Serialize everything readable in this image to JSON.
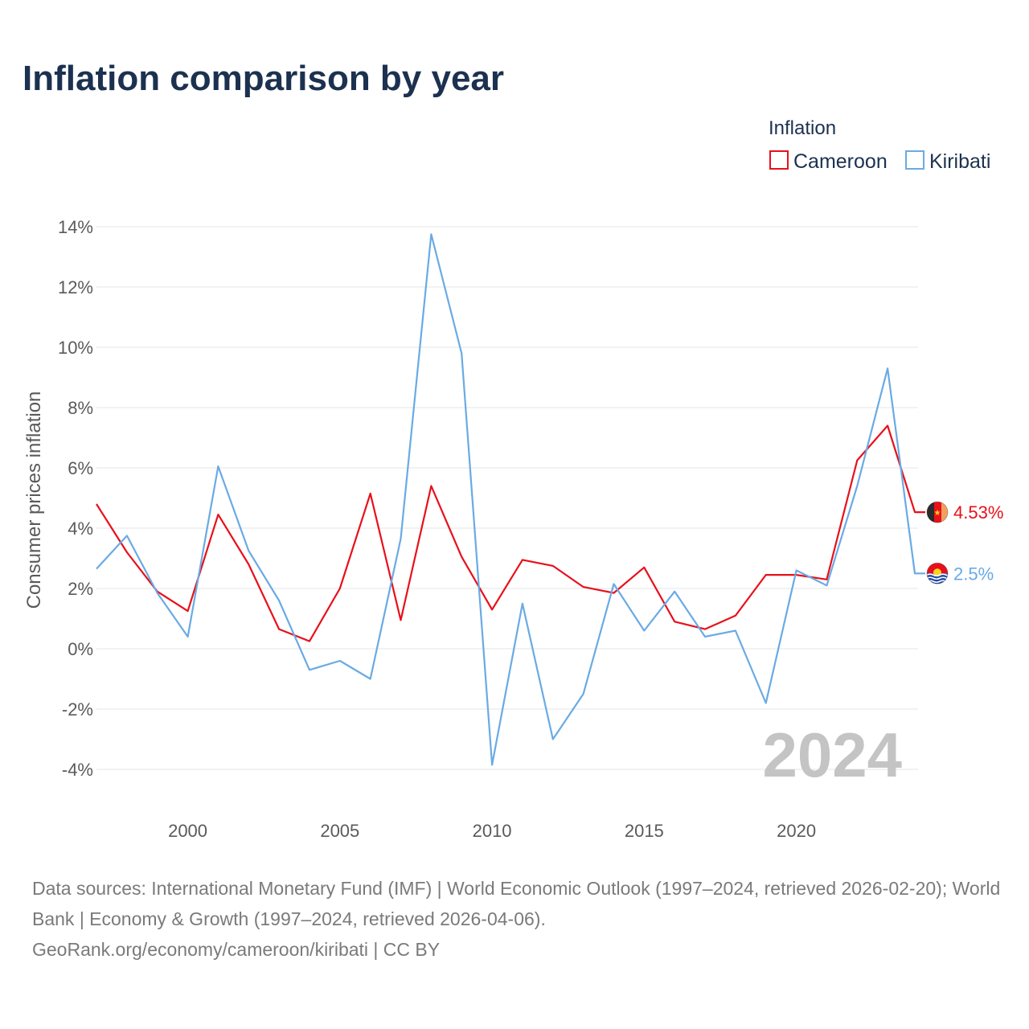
{
  "colors": {
    "title": "#1c3150",
    "cameroon": "#e8101a",
    "kiribati": "#6aaae4",
    "grid": "#e4e4e4",
    "tick": "#5a5a5a",
    "watermark": "#c4c4c4"
  },
  "chart_data": {
    "type": "line",
    "title": "Inflation comparison by year",
    "ylabel": "Consumer prices inflation",
    "xlabel": "",
    "legend_title": "Inflation",
    "legend_position": "top-right",
    "xlim": [
      1997,
      2024
    ],
    "ylim": [
      -4,
      14
    ],
    "x_ticks": [
      2000,
      2005,
      2010,
      2015,
      2020
    ],
    "y_ticks": [
      -4,
      -2,
      0,
      2,
      4,
      6,
      8,
      10,
      12,
      14
    ],
    "y_tick_labels": [
      "-4%",
      "-2%",
      "0%",
      "2%",
      "4%",
      "6%",
      "8%",
      "10%",
      "12%",
      "14%"
    ],
    "x": [
      1997,
      1998,
      1999,
      2000,
      2001,
      2002,
      2003,
      2004,
      2005,
      2006,
      2007,
      2008,
      2009,
      2010,
      2011,
      2012,
      2013,
      2014,
      2015,
      2016,
      2017,
      2018,
      2019,
      2020,
      2021,
      2022,
      2023,
      2024
    ],
    "series": [
      {
        "name": "Cameroon",
        "color": "#e8101a",
        "end_label": "4.53%",
        "flag_icon": "cameroon-flag-icon",
        "values": [
          4.8,
          3.2,
          1.9,
          1.25,
          4.45,
          2.8,
          0.65,
          0.25,
          2.0,
          5.15,
          0.95,
          5.4,
          3.05,
          1.3,
          2.95,
          2.75,
          2.05,
          1.85,
          2.7,
          0.9,
          0.65,
          1.1,
          2.45,
          2.45,
          2.3,
          6.25,
          7.4,
          4.53
        ]
      },
      {
        "name": "Kiribati",
        "color": "#6aaae4",
        "end_label": "2.5%",
        "flag_icon": "kiribati-flag-icon",
        "values": [
          2.65,
          3.75,
          1.85,
          0.4,
          6.05,
          3.25,
          1.6,
          -0.7,
          -0.4,
          -1.0,
          3.65,
          13.75,
          9.8,
          -3.85,
          1.5,
          -3.0,
          -1.5,
          2.15,
          0.6,
          1.9,
          0.4,
          0.6,
          -1.8,
          2.6,
          2.1,
          5.4,
          9.3,
          2.5
        ]
      }
    ],
    "watermark_year": "2024"
  },
  "footer": {
    "sources": "Data sources: International Monetary Fund (IMF) | World Economic Outlook (1997–2024, retrieved 2026-02-20); World Bank | Economy & Growth (1997–2024, retrieved 2026-04-06).",
    "credit": "GeoRank.org/economy/cameroon/kiribati | CC BY"
  }
}
